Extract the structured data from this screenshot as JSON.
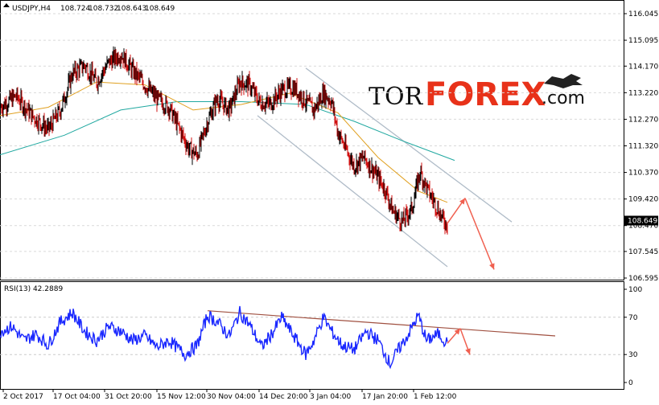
{
  "chart_data": [
    {
      "type": "candlestick",
      "header": {
        "symbol": "USDJPY,H4",
        "open": "108.724",
        "high": "108.732",
        "low": "108.643",
        "close": "108.649"
      },
      "yticks": [
        "116.045",
        "115.095",
        "114.170",
        "113.220",
        "112.270",
        "111.320",
        "110.370",
        "109.420",
        "108.470",
        "107.545",
        "106.595"
      ],
      "ylim": [
        106.595,
        116.045
      ],
      "last_price": "108.649",
      "xticks": [
        "2 Oct 2017",
        "17 Oct 04:00",
        "31 Oct 20:00",
        "15 Nov 12:00",
        "30 Nov 04:00",
        "14 Dec 20:00",
        "3 Jan 04:00",
        "17 Jan 20:00",
        "1 Feb 12:00"
      ],
      "price_path": [
        [
          0,
          112.7
        ],
        [
          20,
          113.1
        ],
        [
          40,
          112.4
        ],
        [
          60,
          111.9
        ],
        [
          75,
          112.6
        ],
        [
          90,
          113.9
        ],
        [
          105,
          114.2
        ],
        [
          120,
          113.6
        ],
        [
          135,
          114.3
        ],
        [
          150,
          114.6
        ],
        [
          165,
          114.0
        ],
        [
          180,
          113.5
        ],
        [
          195,
          113.0
        ],
        [
          210,
          112.7
        ],
        [
          220,
          112.1
        ],
        [
          235,
          111.2
        ],
        [
          245,
          111.0
        ],
        [
          258,
          112.2
        ],
        [
          270,
          113.0
        ],
        [
          285,
          112.6
        ],
        [
          298,
          113.6
        ],
        [
          310,
          113.5
        ],
        [
          322,
          112.9
        ],
        [
          335,
          112.8
        ],
        [
          350,
          113.3
        ],
        [
          365,
          113.4
        ],
        [
          380,
          112.9
        ],
        [
          390,
          112.6
        ],
        [
          402,
          113.2
        ],
        [
          412,
          112.9
        ],
        [
          420,
          111.8
        ],
        [
          430,
          111.2
        ],
        [
          440,
          110.6
        ],
        [
          452,
          110.9
        ],
        [
          465,
          110.4
        ],
        [
          478,
          109.8
        ],
        [
          488,
          109.0
        ],
        [
          500,
          108.6
        ],
        [
          512,
          109.1
        ],
        [
          522,
          110.4
        ],
        [
          532,
          109.7
        ],
        [
          542,
          109.2
        ],
        [
          550,
          108.7
        ],
        [
          556,
          108.5
        ]
      ],
      "ma_fast": [
        [
          0,
          112.4
        ],
        [
          60,
          112.7
        ],
        [
          120,
          113.6
        ],
        [
          180,
          113.5
        ],
        [
          240,
          112.6
        ],
        [
          300,
          112.8
        ],
        [
          360,
          113.2
        ],
        [
          420,
          112.5
        ],
        [
          470,
          110.9
        ],
        [
          520,
          109.7
        ],
        [
          556,
          109.3
        ]
      ],
      "ma_slow": [
        [
          0,
          111.0
        ],
        [
          80,
          111.7
        ],
        [
          150,
          112.6
        ],
        [
          220,
          112.9
        ],
        [
          300,
          112.9
        ],
        [
          380,
          112.8
        ],
        [
          440,
          112.2
        ],
        [
          500,
          111.5
        ],
        [
          565,
          110.8
        ]
      ],
      "channel_upper": [
        [
          380,
          114.1
        ],
        [
          636,
          108.6
        ]
      ],
      "channel_lower": [
        [
          320,
          112.4
        ],
        [
          556,
          107.0
        ]
      ],
      "forecast_path": [
        [
          556,
          108.55
        ],
        [
          578,
          109.45
        ],
        [
          614,
          106.9
        ]
      ]
    },
    {
      "type": "line",
      "header": "RSI(13) 42.2889",
      "yticks": [
        "100",
        "70",
        "30",
        "0"
      ],
      "ylim": [
        0,
        100
      ],
      "rsi_path": [
        [
          0,
          55
        ],
        [
          15,
          60
        ],
        [
          30,
          45
        ],
        [
          45,
          52
        ],
        [
          60,
          40
        ],
        [
          75,
          65
        ],
        [
          90,
          75
        ],
        [
          105,
          55
        ],
        [
          120,
          45
        ],
        [
          135,
          60
        ],
        [
          150,
          55
        ],
        [
          165,
          45
        ],
        [
          180,
          50
        ],
        [
          195,
          38
        ],
        [
          210,
          45
        ],
        [
          230,
          30
        ],
        [
          245,
          40
        ],
        [
          258,
          72
        ],
        [
          270,
          65
        ],
        [
          285,
          50
        ],
        [
          298,
          75
        ],
        [
          310,
          62
        ],
        [
          325,
          38
        ],
        [
          340,
          55
        ],
        [
          350,
          70
        ],
        [
          365,
          50
        ],
        [
          380,
          30
        ],
        [
          390,
          45
        ],
        [
          402,
          70
        ],
        [
          412,
          55
        ],
        [
          425,
          40
        ],
        [
          440,
          35
        ],
        [
          455,
          55
        ],
        [
          470,
          45
        ],
        [
          485,
          20
        ],
        [
          495,
          35
        ],
        [
          505,
          48
        ],
        [
          520,
          72
        ],
        [
          530,
          45
        ],
        [
          545,
          52
        ],
        [
          556,
          42
        ]
      ],
      "trendline": [
        [
          258,
          77
        ],
        [
          690,
          50
        ]
      ],
      "forecast_path": [
        [
          556,
          42
        ],
        [
          572,
          58
        ],
        [
          584,
          30
        ]
      ]
    }
  ],
  "watermark": {
    "part1": "TOR",
    "part2": "FOREX",
    "part3": ".com"
  },
  "colors": {
    "bull_candle": "#000000",
    "bear_candle": "#d01010",
    "ma_fast": "#e0a020",
    "ma_slow": "#20a8a0",
    "channel": "#b0bcc8",
    "rsi_line": "#1a28ff",
    "rsi_trend": "#a05040",
    "forecast": "#f06050",
    "logo_accent": "#e8321a"
  }
}
